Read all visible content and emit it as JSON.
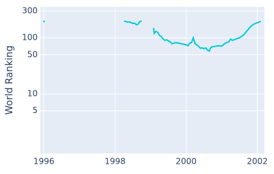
{
  "chart_data": {
    "type": "line",
    "y_label": "World Ranking",
    "log_y": true,
    "grid": true,
    "xlim": [
      1995.9,
      2002.2
    ],
    "xticks": [
      1996,
      1998,
      2000,
      2002
    ],
    "ylim": [
      0.87,
      355
    ],
    "yticks": [
      5,
      10,
      50,
      100,
      300
    ],
    "x": [
      1995.98,
      1996.02,
      1997.0,
      1998.25,
      1998.3,
      1998.35,
      1998.4,
      1998.45,
      1998.5,
      1998.55,
      1998.6,
      1998.65,
      1998.7,
      1998.75,
      1998.9,
      1999.08,
      1999.1,
      1999.15,
      1999.2,
      1999.25,
      1999.3,
      1999.35,
      1999.4,
      1999.45,
      1999.5,
      1999.55,
      1999.6,
      1999.7,
      1999.8,
      1999.9,
      2000.0,
      2000.05,
      2000.1,
      2000.15,
      2000.2,
      2000.25,
      2000.3,
      2000.35,
      2000.4,
      2000.45,
      2000.5,
      2000.55,
      2000.6,
      2000.65,
      2000.7,
      2000.8,
      2000.9,
      2001.0,
      2001.1,
      2001.2,
      2001.25,
      2001.3,
      2001.4,
      2001.5,
      2001.6,
      2001.7,
      2001.8,
      2001.9,
      2002.0,
      2002.1
    ],
    "series": [
      {
        "color": "#00cbd6",
        "values": [
          190,
          200,
          null,
          195,
          195,
          190,
          192,
          185,
          180,
          182,
          170,
          175,
          195,
          195,
          null,
          150,
          120,
          130,
          125,
          110,
          105,
          95,
          90,
          92,
          88,
          85,
          78,
          82,
          80,
          77,
          75,
          72,
          80,
          82,
          100,
          78,
          75,
          70,
          65,
          66,
          64,
          66,
          60,
          58,
          68,
          70,
          72,
          71,
          80,
          85,
          95,
          90,
          95,
          100,
          110,
          130,
          155,
          175,
          185,
          195
        ]
      }
    ]
  }
}
